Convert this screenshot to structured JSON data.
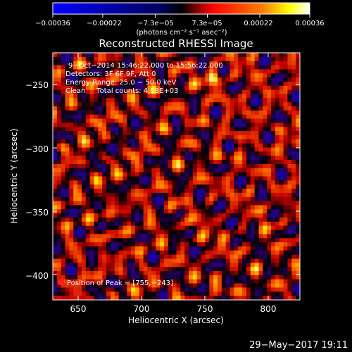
{
  "chart_data": {
    "type": "heatmap",
    "title": "Reconstructed RHESSI Image",
    "xlabel": "Heliocentric X (arcsec)",
    "ylabel": "Heliocentric Y (arcsec)",
    "xlim": [
      630,
      825
    ],
    "ylim": [
      -420,
      -225
    ],
    "x_ticks": [
      650,
      700,
      750,
      800
    ],
    "x_tick_labels": [
      "650",
      "700",
      "750",
      "800"
    ],
    "y_ticks": [
      -250,
      -300,
      -350,
      -400
    ],
    "y_tick_labels": [
      "−250",
      "−300",
      "−350",
      "−400"
    ],
    "colorbar": {
      "range": [
        -0.00036,
        0.00036
      ],
      "tick_values": [
        -0.00036,
        -0.00022,
        -7.3e-05,
        7.3e-05,
        0.00022,
        0.00036
      ],
      "tick_labels": [
        "−0.00036",
        "−0.00022",
        "−7.3e−05",
        "7.3e−05",
        "0.00022",
        "0.00036"
      ],
      "unit_label": "(photons cm⁻² s⁻¹ asec⁻²)",
      "colormap": [
        "#0000ff",
        "#000000",
        "#ff0000",
        "#ffff00",
        "#ffffff"
      ]
    },
    "annotations": [
      "9−Oct−2014 15:46:22.000 to 15:56:22.000",
      "Detectors: 3F 6F 9F, Att 0",
      "Energy Range: 25.0 − 50.0 keV",
      "Clean     Total counts: 4.98E+03"
    ],
    "peak_label": "Position of Peak = [755,−243]",
    "peak": [
      755,
      -243
    ],
    "grid": false
  },
  "footer": {
    "timestamp": "29−May−2017 19:11"
  }
}
